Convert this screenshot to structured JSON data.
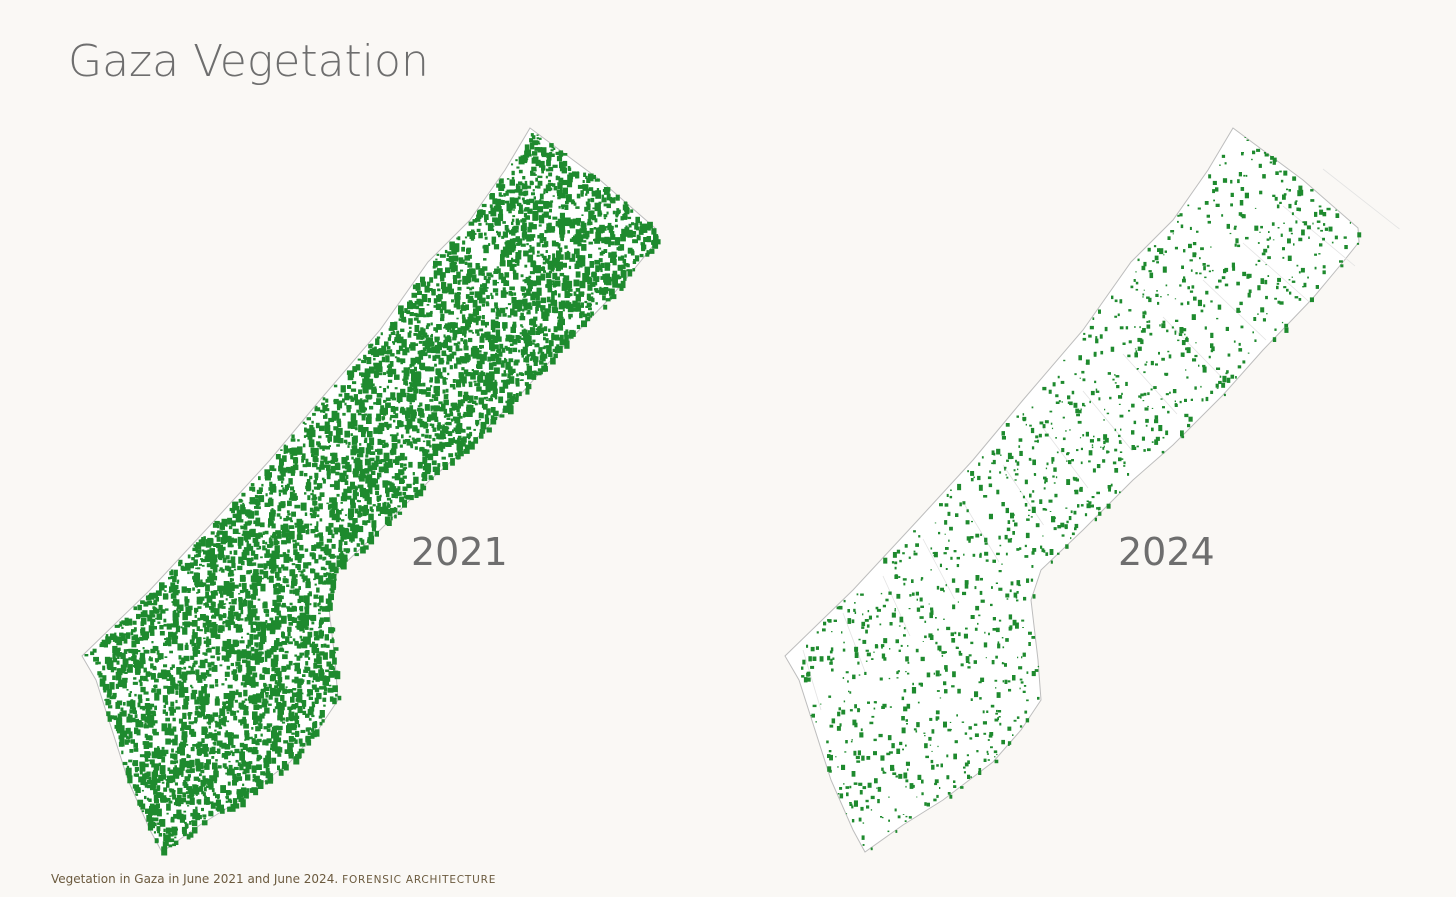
{
  "header": {
    "title": "Gaza Vegetation"
  },
  "maps": [
    {
      "label": "2021"
    },
    {
      "label": "2024"
    }
  ],
  "caption": {
    "text": "Vegetation in Gaza in June 2021 and June 2024.",
    "credit": "FORENSIC ARCHITECTURE"
  }
}
